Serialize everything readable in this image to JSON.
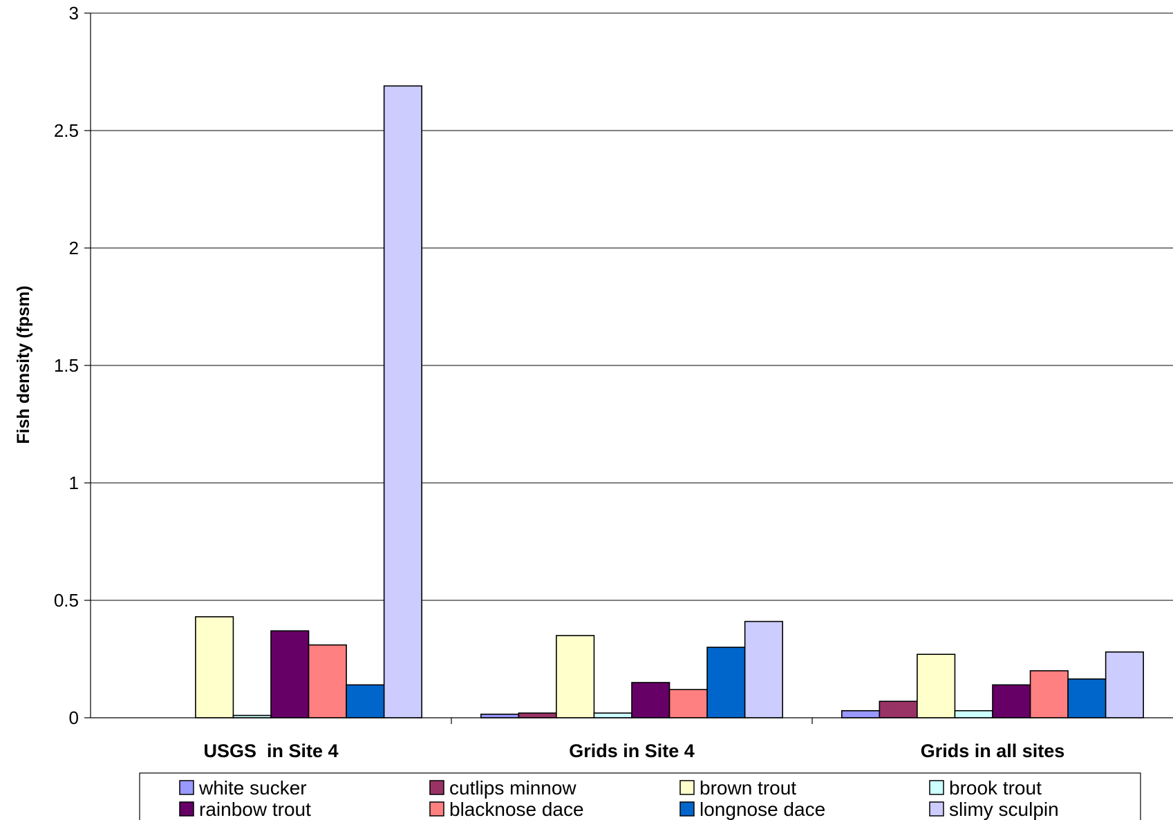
{
  "chart_data": {
    "type": "bar",
    "title": "",
    "xlabel": "",
    "ylabel": "Fish density (fpsm)",
    "ylim": [
      0,
      3
    ],
    "yticks": [
      "0",
      "0.5",
      "1",
      "1.5",
      "2",
      "2.5",
      "3"
    ],
    "grid": true,
    "legend_position": "bottom",
    "categories": [
      "USGS  in Site 4",
      "Grids in Site 4",
      "Grids in all sites"
    ],
    "series": [
      {
        "name": "white sucker",
        "color": "#9999FF",
        "values": [
          0.0,
          0.015,
          0.03
        ]
      },
      {
        "name": "cutlips minnow",
        "color": "#993366",
        "values": [
          0.0,
          0.02,
          0.07
        ]
      },
      {
        "name": "brown trout",
        "color": "#FFFFCC",
        "values": [
          0.43,
          0.35,
          0.27
        ]
      },
      {
        "name": "brook trout",
        "color": "#CCFFFF",
        "values": [
          0.01,
          0.02,
          0.03
        ]
      },
      {
        "name": "rainbow trout",
        "color": "#660066",
        "values": [
          0.37,
          0.15,
          0.14
        ]
      },
      {
        "name": "blacknose dace",
        "color": "#FF8080",
        "values": [
          0.31,
          0.12,
          0.2
        ]
      },
      {
        "name": "longnose dace",
        "color": "#0066CC",
        "values": [
          0.14,
          0.3,
          0.165
        ]
      },
      {
        "name": "slimy sculpin",
        "color": "#CCCCFF",
        "values": [
          2.69,
          0.41,
          0.28
        ]
      }
    ]
  }
}
